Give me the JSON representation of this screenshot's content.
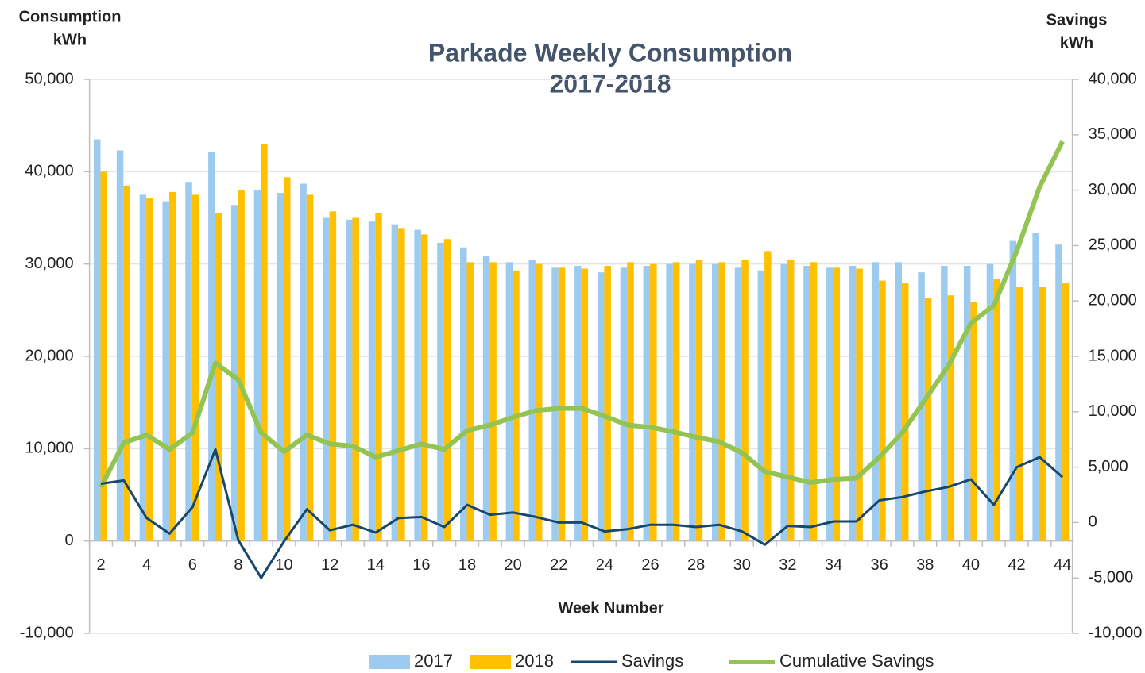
{
  "chart_data": {
    "type": "combo",
    "title": "Parkade Weekly Consumption",
    "subtitle": "2017-2018",
    "x_label": "Week Number",
    "y_label": [
      "Consumption",
      "kWh"
    ],
    "y2_label": [
      "Savings",
      "kWh"
    ],
    "categories": [
      "2",
      null,
      "4",
      null,
      "6",
      null,
      "8",
      null,
      "10",
      null,
      "12",
      null,
      "14",
      null,
      "16",
      null,
      "18",
      null,
      "20",
      null,
      "22",
      null,
      "24",
      null,
      "26",
      null,
      "28",
      null,
      "30",
      null,
      "32",
      null,
      "34",
      null,
      "36",
      null,
      "38",
      null,
      "40",
      null,
      "42",
      null,
      "44"
    ],
    "series": [
      {
        "name": "2017",
        "type": "bar",
        "color": "#9dcbf0",
        "values": [
          43500,
          42300,
          37500,
          36800,
          38900,
          42100,
          36400,
          38000,
          37700,
          38700,
          35000,
          34800,
          34600,
          34300,
          33700,
          32300,
          31800,
          30900,
          30200,
          30400,
          29600,
          29800,
          29100,
          29600,
          29800,
          30000,
          30000,
          30000,
          29600,
          29300,
          30000,
          29800,
          29600,
          29800,
          30200,
          30200,
          29100,
          29800,
          29800,
          30000,
          32500,
          33400,
          32100
        ]
      },
      {
        "name": "2018",
        "type": "bar",
        "color": "#ffc000",
        "values": [
          40000,
          38500,
          37100,
          37800,
          37500,
          35500,
          38000,
          43000,
          39400,
          37500,
          35700,
          35000,
          35500,
          33900,
          33200,
          32700,
          30200,
          30200,
          29300,
          30000,
          29600,
          29500,
          29800,
          30200,
          30000,
          30200,
          30400,
          30200,
          30400,
          31400,
          30400,
          30200,
          29600,
          29500,
          28200,
          27900,
          26300,
          26600,
          25900,
          28400,
          27500,
          27500,
          27900
        ]
      },
      {
        "name": "Savings",
        "type": "line",
        "axis": "y2",
        "color": "#17476b",
        "values": [
          3500,
          3800,
          400,
          -1000,
          1400,
          6600,
          -1600,
          -5000,
          -1700,
          1200,
          -700,
          -200,
          -900,
          400,
          500,
          -400,
          1600,
          700,
          900,
          500,
          0,
          0,
          -800,
          -600,
          -200,
          -200,
          -400,
          -200,
          -800,
          -2000,
          -300,
          -400,
          100,
          100,
          2000,
          2300,
          2800,
          3200,
          3900,
          1600,
          5000,
          5900,
          4100
        ]
      },
      {
        "name": "Cumulative Savings",
        "type": "line",
        "axis": "y2",
        "color": "#92c353",
        "values": [
          3200,
          7200,
          7900,
          6600,
          8100,
          14400,
          12900,
          8100,
          6400,
          7900,
          7100,
          6900,
          5900,
          6500,
          7100,
          6600,
          8300,
          8800,
          9500,
          10100,
          10300,
          10300,
          9600,
          8800,
          8600,
          8200,
          7700,
          7300,
          6300,
          4600,
          4100,
          3600,
          3900,
          4000,
          5900,
          8100,
          11100,
          14100,
          18000,
          19600,
          24500,
          30300,
          34400
        ]
      }
    ],
    "ylim": [
      -10000,
      50000
    ],
    "yticks": [
      {
        "value": -10000,
        "label": "-10,000"
      },
      0,
      {
        "value": 10000,
        "label": "10,000"
      },
      {
        "value": 20000,
        "label": "20,000"
      },
      {
        "value": 30000,
        "label": "30,000"
      },
      {
        "value": 40000,
        "label": "40,000"
      },
      {
        "value": 50000,
        "label": "50,000"
      }
    ],
    "y2lim": [
      -10000,
      40000
    ],
    "y2ticks": [
      {
        "value": -10000,
        "label": "-10,000"
      },
      {
        "value": -5000,
        "label": "-5,000"
      },
      0,
      {
        "value": 5000,
        "label": "5,000"
      },
      {
        "value": 10000,
        "label": "10,000"
      },
      {
        "value": 15000,
        "label": "15,000"
      },
      {
        "value": 20000,
        "label": "20,000"
      },
      {
        "value": 25000,
        "label": "25,000"
      },
      {
        "value": 30000,
        "label": "30,000"
      },
      {
        "value": 35000,
        "label": "35,000"
      },
      {
        "value": 40000,
        "label": "40,000"
      }
    ],
    "grid": true,
    "legend": "bottom"
  }
}
